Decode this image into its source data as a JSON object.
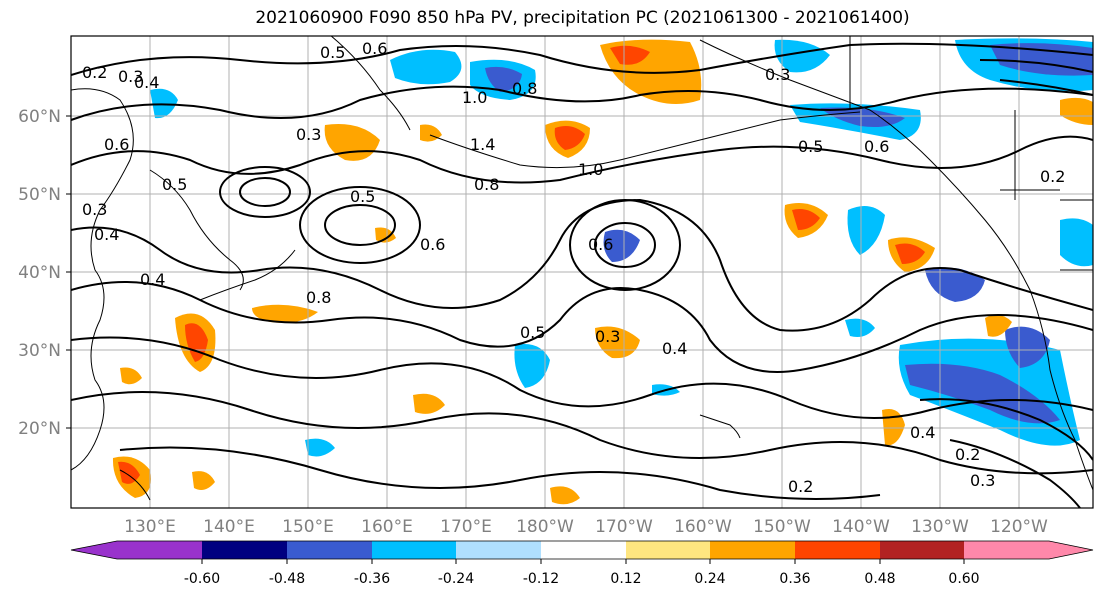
{
  "title": "2021060900 F090 850 hPa PV, precipitation PC (2021061300 - 2021061400)",
  "lat_labels": [
    "60°N",
    "50°N",
    "40°N",
    "30°N",
    "20°N"
  ],
  "lon_labels": [
    "130°E",
    "140°E",
    "150°E",
    "160°E",
    "170°E",
    "180°W",
    "170°W",
    "160°W",
    "150°W",
    "140°W",
    "130°W",
    "120°W"
  ],
  "colorbar": {
    "colors": [
      "#9932cc",
      "#000080",
      "#3a5bcf",
      "#00bfff",
      "#b0e0ff",
      "#ffffff",
      "#ffe680",
      "#ffa500",
      "#ff4500",
      "#b22222",
      "#ff88aa"
    ],
    "tick_labels": [
      "-0.60",
      "-0.48",
      "-0.36",
      "-0.24",
      "-0.12",
      "0.12",
      "0.24",
      "0.36",
      "0.48",
      "0.60"
    ]
  },
  "contour_labels": [
    "0.2",
    "0.3",
    "0.4",
    "0.5",
    "0.6",
    "0.8",
    "1.0",
    "1.4",
    "0.6",
    "0.5",
    "0.4",
    "0.3",
    "0.8",
    "0.6",
    "0.5",
    "0.4",
    "0.3",
    "0.2",
    "0.4",
    "0.3",
    "0.5",
    "0.6",
    "0.8",
    "1.0",
    "0.6",
    "0.5",
    "0.4",
    "0.3",
    "0.2",
    "0.2",
    "0.3"
  ]
}
